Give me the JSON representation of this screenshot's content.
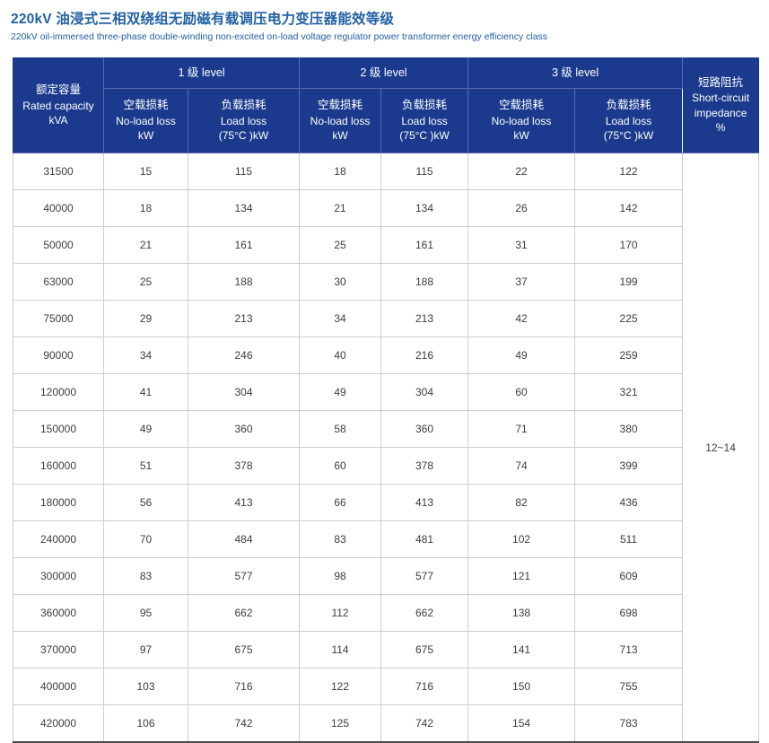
{
  "page": {
    "title": "220kV 油浸式三相双绕组无励磁有载调压电力变压器能效等级",
    "subtitle": "220kV oil-immersed three-phase double-winding non-excited on-load voltage regulator power transformer energy efficiency class"
  },
  "colors": {
    "title_blue": "#2160a4",
    "header_bg": "#1b3a8d",
    "header_inner_border": "#5a6ab0",
    "header_group_separator": "#ffffff",
    "body_border": "#cccccc",
    "body_text": "#3d3d3d",
    "bottom_rule": "#4a4a4a"
  },
  "table": {
    "capacity_header": {
      "zh": "额定容量",
      "en": "Rated capacity",
      "unit": "kVA"
    },
    "groups": [
      {
        "label": "1 级 level"
      },
      {
        "label": "2 级 level"
      },
      {
        "label": "3 级 level"
      }
    ],
    "sub_headers": {
      "no_load": {
        "zh": "空载损耗",
        "en": "No-load loss",
        "unit": "kW"
      },
      "load": {
        "zh": "负载损耗",
        "en": "Load loss",
        "unit": "(75°C )kW"
      }
    },
    "impedance_header": {
      "zh": "短路阻抗",
      "en_line1": "Short-circuit",
      "en_line2": "impedance",
      "unit": "%"
    },
    "impedance_value": "12~14",
    "rows": [
      {
        "capacity": "31500",
        "values": [
          "15",
          "115",
          "18",
          "115",
          "22",
          "122"
        ]
      },
      {
        "capacity": "40000",
        "values": [
          "18",
          "134",
          "21",
          "134",
          "26",
          "142"
        ]
      },
      {
        "capacity": "50000",
        "values": [
          "21",
          "161",
          "25",
          "161",
          "31",
          "170"
        ]
      },
      {
        "capacity": "63000",
        "values": [
          "25",
          "188",
          "30",
          "188",
          "37",
          "199"
        ]
      },
      {
        "capacity": "75000",
        "values": [
          "29",
          "213",
          "34",
          "213",
          "42",
          "225"
        ]
      },
      {
        "capacity": "90000",
        "values": [
          "34",
          "246",
          "40",
          "216",
          "49",
          "259"
        ]
      },
      {
        "capacity": "120000",
        "values": [
          "41",
          "304",
          "49",
          "304",
          "60",
          "321"
        ]
      },
      {
        "capacity": "150000",
        "values": [
          "49",
          "360",
          "58",
          "360",
          "71",
          "380"
        ]
      },
      {
        "capacity": "160000",
        "values": [
          "51",
          "378",
          "60",
          "378",
          "74",
          "399"
        ]
      },
      {
        "capacity": "180000",
        "values": [
          "56",
          "413",
          "66",
          "413",
          "82",
          "436"
        ]
      },
      {
        "capacity": "240000",
        "values": [
          "70",
          "484",
          "83",
          "481",
          "102",
          "511"
        ]
      },
      {
        "capacity": "300000",
        "values": [
          "83",
          "577",
          "98",
          "577",
          "121",
          "609"
        ]
      },
      {
        "capacity": "360000",
        "values": [
          "95",
          "662",
          "112",
          "662",
          "138",
          "698"
        ]
      },
      {
        "capacity": "370000",
        "values": [
          "97",
          "675",
          "114",
          "675",
          "141",
          "713"
        ]
      },
      {
        "capacity": "400000",
        "values": [
          "103",
          "716",
          "122",
          "716",
          "150",
          "755"
        ]
      },
      {
        "capacity": "420000",
        "values": [
          "106",
          "742",
          "125",
          "742",
          "154",
          "783"
        ]
      }
    ]
  }
}
